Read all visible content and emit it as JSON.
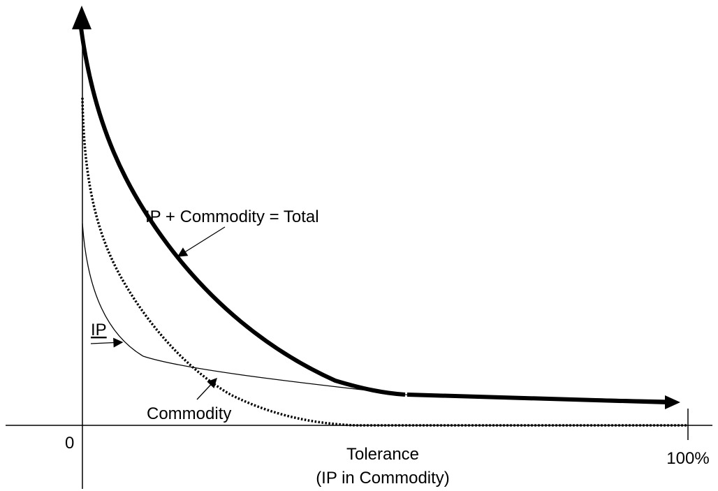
{
  "curves": {
    "total": "IP + Commodity = Total",
    "ip": "IP",
    "commodity": "Commodity"
  },
  "axes": {
    "origin": "0",
    "end": "100%",
    "x_title": "Tolerance",
    "x_subtitle": "(IP in Commodity)"
  }
}
